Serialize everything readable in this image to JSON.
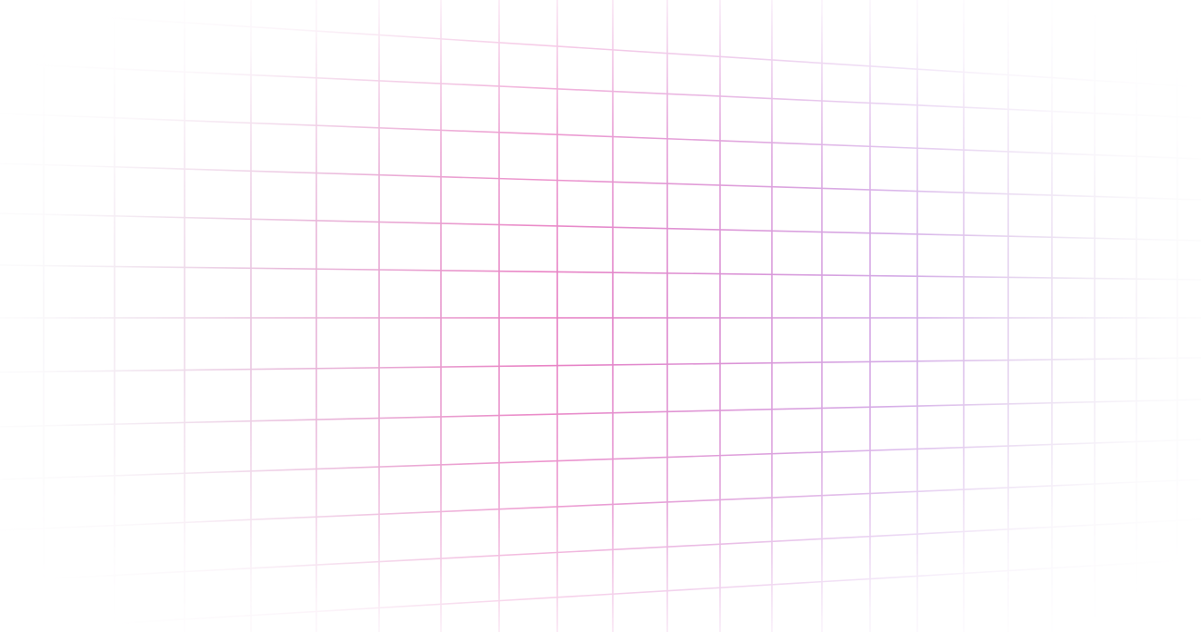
{
  "background": {
    "color": "#ffffff",
    "grid_colors": {
      "pink": "#e879c0",
      "violet": "#c792e0",
      "gray": "#d8d4e0"
    }
  }
}
